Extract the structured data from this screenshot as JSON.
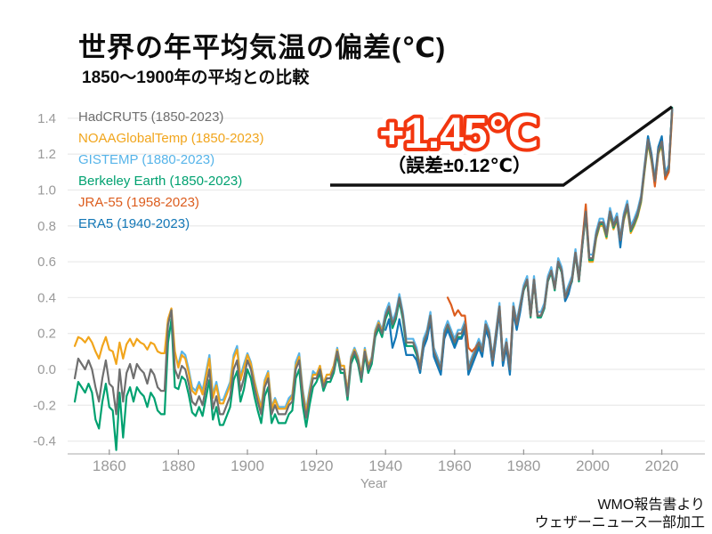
{
  "title": "世界の年平均気温の偏差(℃)",
  "subtitle": "1850〜1900年の平均との比較",
  "annotation": {
    "headline": "+1.45℃",
    "detail": "（誤差±0.12℃）",
    "headline_color": "#F2360F",
    "target_year": 2023,
    "target_value": 1.45
  },
  "credit": {
    "line1": "WMO報告書より",
    "line2": "ウェザーニュース一部加工"
  },
  "chart_data": {
    "type": "line",
    "title": "世界の年平均気温の偏差(℃)",
    "subtitle": "1850〜1900年の平均との比較",
    "xlabel": "Year",
    "ylabel": "",
    "xlim": [
      1848,
      2026
    ],
    "ylim": [
      -0.5,
      1.5
    ],
    "x_ticks": [
      1860,
      1880,
      1900,
      1920,
      1940,
      1960,
      1980,
      2000,
      2020
    ],
    "y_ticks": [
      1.4,
      1.2,
      1.0,
      0.8,
      0.6,
      0.4,
      0.2,
      0.0,
      -0.2,
      -0.4
    ],
    "y_tick_labels": [
      "1.4",
      "1.2",
      "1.0",
      "0.8",
      "0.6",
      "0.4",
      "0.2",
      "0.0",
      "-0.2",
      "-0.4"
    ],
    "grid": "horizontal",
    "legend_position": "top-left",
    "series": [
      {
        "label": "HadCRUT5 (1850-2023)",
        "color": "#6F6F6F",
        "start_year": 1850,
        "values": [
          -0.05,
          0.06,
          0.03,
          0.0,
          0.05,
          0.0,
          -0.1,
          -0.18,
          -0.05,
          0.05,
          -0.08,
          -0.1,
          -0.25,
          0.0,
          -0.18,
          -0.02,
          0.03,
          -0.05,
          0.03,
          0.0,
          -0.02,
          -0.08,
          0.0,
          -0.03,
          -0.1,
          -0.12,
          -0.12,
          0.25,
          0.33,
          0.0,
          -0.05,
          0.02,
          0.0,
          -0.08,
          -0.18,
          -0.2,
          -0.15,
          -0.2,
          -0.1,
          0.0,
          -0.22,
          -0.15,
          -0.25,
          -0.25,
          -0.2,
          -0.15,
          0.0,
          0.05,
          -0.12,
          -0.05,
          0.05,
          0.0,
          -0.1,
          -0.18,
          -0.25,
          -0.1,
          -0.05,
          -0.25,
          -0.2,
          -0.25,
          -0.25,
          -0.25,
          -0.2,
          -0.18,
          0.0,
          0.05,
          -0.15,
          -0.27,
          -0.15,
          -0.05,
          -0.05,
          0.0,
          -0.1,
          -0.05,
          -0.05,
          0.0,
          0.1,
          0.0,
          0.0,
          -0.15,
          0.05,
          0.1,
          0.05,
          -0.05,
          0.1,
          0.0,
          0.05,
          0.2,
          0.25,
          0.2,
          0.3,
          0.35,
          0.25,
          0.3,
          0.4,
          0.3,
          0.15,
          0.15,
          0.15,
          0.1,
          0.0,
          0.15,
          0.2,
          0.3,
          0.1,
          0.05,
          0.0,
          0.2,
          0.25,
          0.2,
          0.15,
          0.2,
          0.2,
          0.25,
          0.0,
          0.05,
          0.1,
          0.15,
          0.1,
          0.25,
          0.2,
          0.05,
          0.2,
          0.35,
          0.05,
          0.15,
          0.0,
          0.35,
          0.25,
          0.35,
          0.45,
          0.5,
          0.3,
          0.5,
          0.3,
          0.3,
          0.35,
          0.5,
          0.55,
          0.45,
          0.6,
          0.55,
          0.4,
          0.45,
          0.5,
          0.65,
          0.5,
          0.7,
          0.88,
          0.62,
          0.62,
          0.75,
          0.82,
          0.82,
          0.75,
          0.88,
          0.8,
          0.85,
          0.72,
          0.85,
          0.92,
          0.78,
          0.82,
          0.87,
          0.95,
          1.12,
          1.28,
          1.18,
          1.05,
          1.22,
          1.27,
          1.08,
          1.12,
          1.45
        ]
      },
      {
        "label": "NOAAGlobalTemp (1850-2023)",
        "color": "#F1A51C",
        "start_year": 1850,
        "values": [
          0.13,
          0.18,
          0.17,
          0.15,
          0.18,
          0.15,
          0.1,
          0.06,
          0.13,
          0.18,
          0.11,
          0.1,
          0.03,
          0.15,
          0.06,
          0.14,
          0.17,
          0.13,
          0.17,
          0.15,
          0.14,
          0.11,
          0.15,
          0.14,
          0.1,
          0.09,
          0.09,
          0.28,
          0.34,
          0.1,
          0.01,
          0.08,
          0.06,
          -0.02,
          -0.12,
          -0.14,
          -0.09,
          -0.14,
          -0.04,
          0.06,
          -0.16,
          -0.09,
          -0.19,
          -0.19,
          -0.14,
          -0.09,
          0.06,
          0.11,
          -0.06,
          0.01,
          0.08,
          0.03,
          -0.07,
          -0.15,
          -0.22,
          -0.07,
          -0.02,
          -0.22,
          -0.17,
          -0.22,
          -0.22,
          -0.22,
          -0.18,
          -0.15,
          0.02,
          0.07,
          -0.13,
          -0.24,
          -0.13,
          -0.03,
          -0.03,
          0.02,
          -0.08,
          -0.03,
          -0.03,
          0.02,
          0.11,
          0.02,
          0.02,
          -0.13,
          0.06,
          0.11,
          0.06,
          -0.03,
          0.11,
          0.02,
          0.06,
          0.21,
          0.26,
          0.21,
          0.3,
          0.35,
          0.25,
          0.3,
          0.4,
          0.3,
          0.15,
          0.15,
          0.15,
          0.1,
          0.02,
          0.15,
          0.2,
          0.3,
          0.1,
          0.05,
          0.0,
          0.2,
          0.25,
          0.2,
          0.15,
          0.2,
          0.2,
          0.25,
          0.0,
          0.05,
          0.1,
          0.15,
          0.1,
          0.25,
          0.2,
          0.05,
          0.2,
          0.35,
          0.05,
          0.15,
          0.0,
          0.35,
          0.25,
          0.35,
          0.45,
          0.5,
          0.3,
          0.5,
          0.3,
          0.3,
          0.35,
          0.5,
          0.55,
          0.45,
          0.6,
          0.55,
          0.4,
          0.45,
          0.5,
          0.65,
          0.5,
          0.7,
          0.86,
          0.6,
          0.6,
          0.73,
          0.8,
          0.8,
          0.73,
          0.86,
          0.78,
          0.83,
          0.7,
          0.83,
          0.9,
          0.76,
          0.8,
          0.85,
          0.93,
          1.1,
          1.26,
          1.16,
          1.03,
          1.2,
          1.25,
          1.06,
          1.1,
          1.42
        ]
      },
      {
        "label": "GISTEMP (1880-2023)",
        "color": "#56B4E9",
        "start_year": 1880,
        "values": [
          0.03,
          0.1,
          0.08,
          0.0,
          -0.1,
          -0.12,
          -0.07,
          -0.12,
          -0.02,
          0.08,
          -0.14,
          -0.07,
          -0.17,
          -0.17,
          -0.12,
          -0.07,
          0.08,
          0.13,
          -0.04,
          0.03,
          0.09,
          0.04,
          -0.06,
          -0.14,
          -0.21,
          -0.06,
          -0.01,
          -0.21,
          -0.16,
          -0.21,
          -0.21,
          -0.21,
          -0.16,
          -0.14,
          0.04,
          0.09,
          -0.11,
          -0.23,
          -0.11,
          -0.01,
          -0.03,
          0.02,
          -0.08,
          -0.03,
          -0.03,
          0.02,
          0.12,
          0.02,
          0.02,
          -0.13,
          0.07,
          0.12,
          0.07,
          -0.03,
          0.12,
          0.02,
          0.07,
          0.22,
          0.27,
          0.22,
          0.32,
          0.37,
          0.27,
          0.32,
          0.42,
          0.32,
          0.17,
          0.17,
          0.17,
          0.12,
          0.02,
          0.17,
          0.22,
          0.32,
          0.12,
          0.07,
          0.02,
          0.22,
          0.27,
          0.22,
          0.17,
          0.22,
          0.22,
          0.27,
          0.02,
          0.07,
          0.12,
          0.17,
          0.12,
          0.27,
          0.22,
          0.07,
          0.22,
          0.37,
          0.07,
          0.17,
          0.02,
          0.37,
          0.27,
          0.37,
          0.47,
          0.52,
          0.32,
          0.52,
          0.32,
          0.32,
          0.37,
          0.52,
          0.57,
          0.47,
          0.62,
          0.57,
          0.42,
          0.47,
          0.52,
          0.67,
          0.52,
          0.72,
          0.9,
          0.64,
          0.64,
          0.77,
          0.84,
          0.84,
          0.77,
          0.9,
          0.82,
          0.87,
          0.74,
          0.87,
          0.94,
          0.8,
          0.84,
          0.89,
          0.97,
          1.14,
          1.3,
          1.2,
          1.07,
          1.24,
          1.29,
          1.1,
          1.14,
          1.44
        ]
      },
      {
        "label": "Berkeley Earth (1850-2023)",
        "color": "#00A170",
        "start_year": 1850,
        "values": [
          -0.18,
          -0.07,
          -0.1,
          -0.13,
          -0.08,
          -0.13,
          -0.28,
          -0.33,
          -0.18,
          -0.08,
          -0.21,
          -0.23,
          -0.45,
          -0.13,
          -0.38,
          -0.15,
          -0.1,
          -0.18,
          -0.1,
          -0.13,
          -0.15,
          -0.21,
          -0.13,
          -0.16,
          -0.23,
          -0.25,
          -0.25,
          0.15,
          0.28,
          -0.1,
          -0.11,
          -0.04,
          -0.06,
          -0.14,
          -0.24,
          -0.26,
          -0.21,
          -0.26,
          -0.16,
          -0.06,
          -0.28,
          -0.21,
          -0.31,
          -0.31,
          -0.26,
          -0.21,
          -0.06,
          -0.01,
          -0.18,
          -0.11,
          0.0,
          -0.05,
          -0.15,
          -0.23,
          -0.3,
          -0.15,
          -0.1,
          -0.3,
          -0.25,
          -0.3,
          -0.3,
          -0.3,
          -0.25,
          -0.23,
          -0.05,
          0.0,
          -0.2,
          -0.32,
          -0.2,
          -0.1,
          -0.07,
          -0.02,
          -0.12,
          -0.07,
          -0.07,
          -0.02,
          0.08,
          -0.02,
          -0.02,
          -0.17,
          0.03,
          0.08,
          0.03,
          -0.07,
          0.08,
          -0.02,
          0.03,
          0.18,
          0.23,
          0.18,
          0.28,
          0.33,
          0.23,
          0.28,
          0.38,
          0.28,
          0.13,
          0.13,
          0.13,
          0.08,
          -0.02,
          0.13,
          0.18,
          0.28,
          0.08,
          0.03,
          -0.02,
          0.18,
          0.23,
          0.18,
          0.13,
          0.18,
          0.18,
          0.23,
          -0.02,
          0.03,
          0.08,
          0.13,
          0.08,
          0.23,
          0.18,
          0.03,
          0.18,
          0.33,
          0.03,
          0.13,
          -0.02,
          0.33,
          0.23,
          0.33,
          0.44,
          0.49,
          0.29,
          0.49,
          0.29,
          0.29,
          0.34,
          0.49,
          0.54,
          0.44,
          0.59,
          0.54,
          0.39,
          0.44,
          0.49,
          0.64,
          0.49,
          0.69,
          0.87,
          0.61,
          0.61,
          0.74,
          0.81,
          0.81,
          0.74,
          0.87,
          0.79,
          0.84,
          0.71,
          0.84,
          0.91,
          0.77,
          0.81,
          0.86,
          0.94,
          1.11,
          1.27,
          1.17,
          1.04,
          1.21,
          1.26,
          1.07,
          1.11,
          1.46
        ]
      },
      {
        "label": "JRA-55 (1958-2023)",
        "color": "#DC5D1E",
        "start_year": 1958,
        "values": [
          0.4,
          0.36,
          0.3,
          0.33,
          0.3,
          0.3,
          0.12,
          0.1,
          0.12,
          0.15,
          0.1,
          0.25,
          0.2,
          0.05,
          0.2,
          0.35,
          0.05,
          0.15,
          0.02,
          0.35,
          0.25,
          0.35,
          0.45,
          0.5,
          0.3,
          0.5,
          0.3,
          0.3,
          0.35,
          0.5,
          0.55,
          0.45,
          0.6,
          0.55,
          0.4,
          0.45,
          0.5,
          0.65,
          0.5,
          0.72,
          0.92,
          0.62,
          0.62,
          0.75,
          0.82,
          0.82,
          0.75,
          0.88,
          0.8,
          0.85,
          0.72,
          0.85,
          0.92,
          0.78,
          0.82,
          0.87,
          0.95,
          1.12,
          1.28,
          1.18,
          1.02,
          1.22,
          1.27,
          1.06,
          1.1,
          1.43
        ]
      },
      {
        "label": "ERA5 (1940-2023)",
        "color": "#1377B6",
        "start_year": 1940,
        "values": [
          0.22,
          0.28,
          0.12,
          0.18,
          0.28,
          0.18,
          0.08,
          0.08,
          0.08,
          0.05,
          -0.02,
          0.12,
          0.17,
          0.27,
          0.07,
          0.02,
          -0.03,
          0.17,
          0.22,
          0.17,
          0.12,
          0.17,
          0.17,
          0.22,
          -0.03,
          0.02,
          0.07,
          0.12,
          0.07,
          0.22,
          0.17,
          0.02,
          0.17,
          0.32,
          0.02,
          0.12,
          -0.03,
          0.32,
          0.22,
          0.32,
          0.45,
          0.5,
          0.3,
          0.5,
          0.3,
          0.3,
          0.35,
          0.5,
          0.55,
          0.45,
          0.6,
          0.55,
          0.38,
          0.42,
          0.5,
          0.65,
          0.5,
          0.7,
          0.88,
          0.62,
          0.62,
          0.75,
          0.82,
          0.82,
          0.75,
          0.88,
          0.8,
          0.85,
          0.68,
          0.85,
          0.92,
          0.78,
          0.82,
          0.87,
          0.95,
          1.12,
          1.3,
          1.2,
          1.03,
          1.24,
          1.3,
          1.08,
          1.12,
          1.45
        ]
      }
    ]
  }
}
